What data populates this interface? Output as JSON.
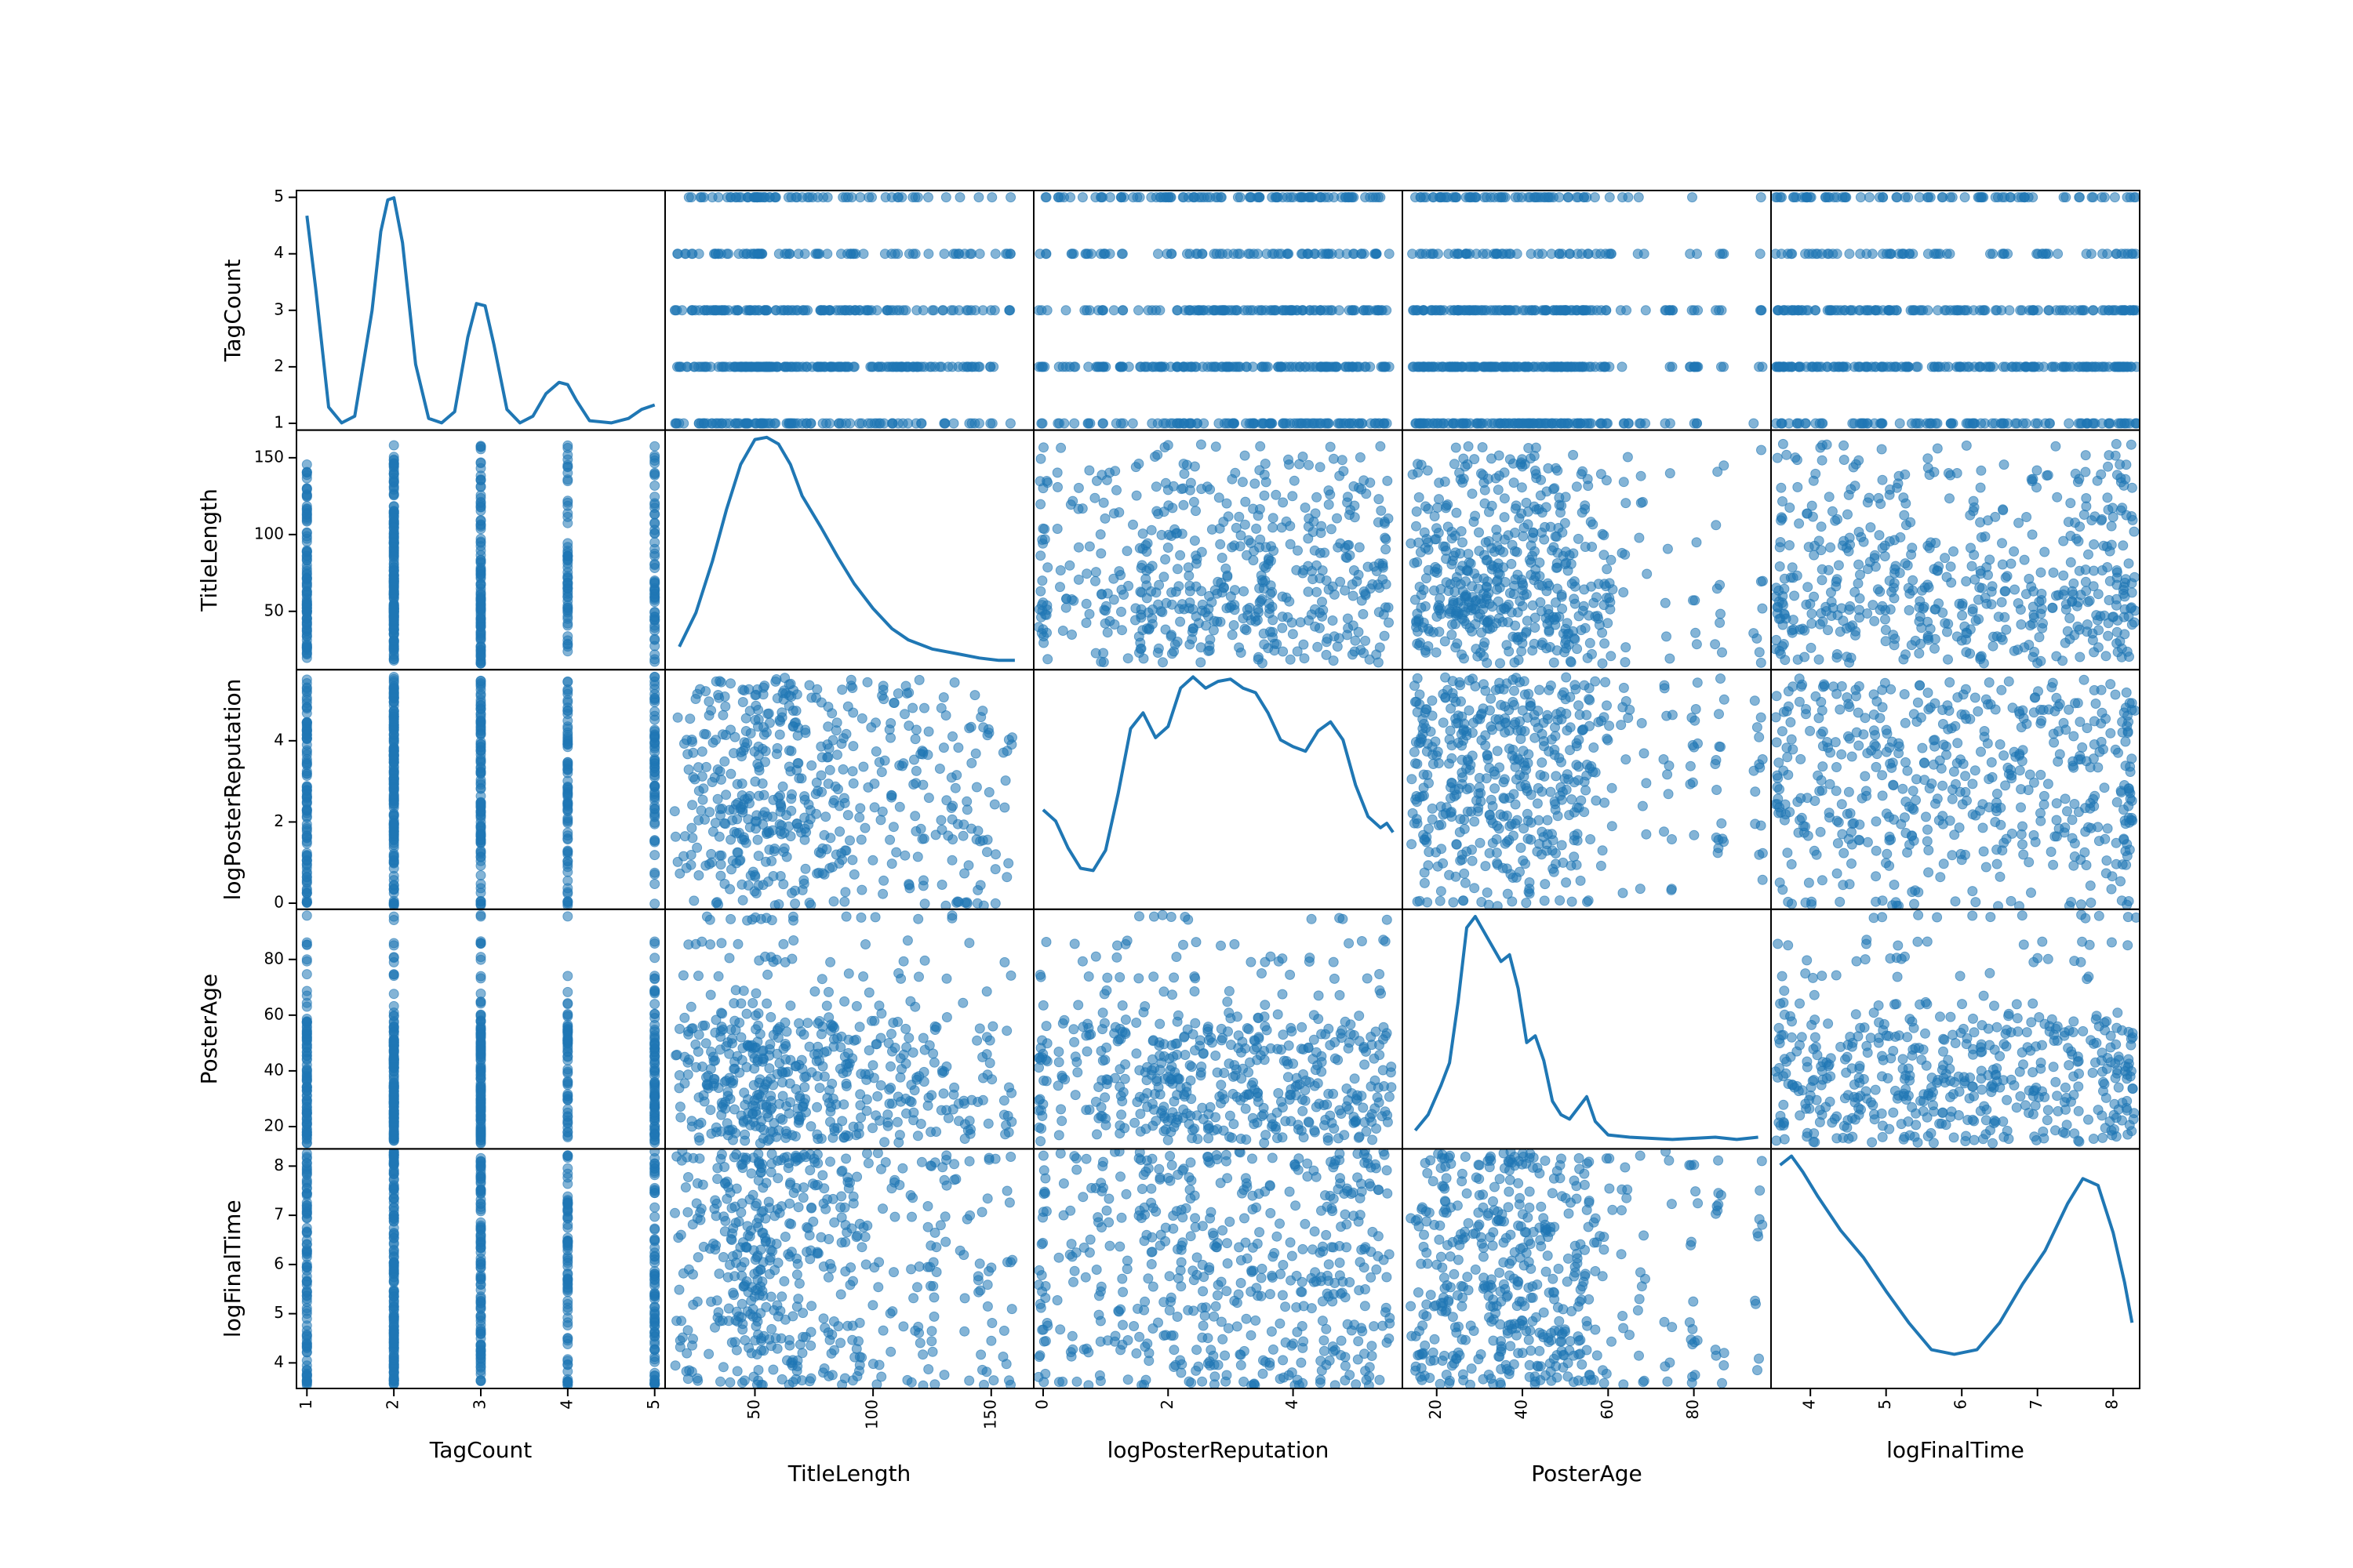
{
  "chart_data": {
    "type": "scatter",
    "variables": [
      {
        "name": "TagCount",
        "ticks": [
          1,
          2,
          3,
          4,
          5
        ]
      },
      {
        "name": "TitleLength",
        "ticks": [
          50,
          100,
          150
        ]
      },
      {
        "name": "logPosterReputation",
        "ticks": [
          0,
          2,
          4
        ]
      },
      {
        "name": "PosterAge",
        "ticks": [
          20,
          40,
          60,
          80
        ]
      },
      {
        "name": "logFinalTime",
        "ticks": [
          4,
          5,
          6,
          7,
          8
        ]
      }
    ],
    "diagonal": "kde",
    "point_color": "#1f77b4",
    "point_alpha": 0.5,
    "kde": {
      "TagCount": [
        [
          1.0,
          0.92
        ],
        [
          1.1,
          0.6
        ],
        [
          1.25,
          0.07
        ],
        [
          1.4,
          0.0
        ],
        [
          1.55,
          0.03
        ],
        [
          1.75,
          0.5
        ],
        [
          1.85,
          0.85
        ],
        [
          1.93,
          0.99
        ],
        [
          2.0,
          1.0
        ],
        [
          2.1,
          0.8
        ],
        [
          2.25,
          0.26
        ],
        [
          2.4,
          0.02
        ],
        [
          2.55,
          0.0
        ],
        [
          2.7,
          0.05
        ],
        [
          2.85,
          0.38
        ],
        [
          2.95,
          0.53
        ],
        [
          3.05,
          0.52
        ],
        [
          3.15,
          0.35
        ],
        [
          3.3,
          0.06
        ],
        [
          3.45,
          0.0
        ],
        [
          3.6,
          0.03
        ],
        [
          3.75,
          0.13
        ],
        [
          3.9,
          0.18
        ],
        [
          4.0,
          0.17
        ],
        [
          4.1,
          0.1
        ],
        [
          4.25,
          0.01
        ],
        [
          4.5,
          0.0
        ],
        [
          4.7,
          0.02
        ],
        [
          4.85,
          0.06
        ],
        [
          5.0,
          0.08
        ]
      ],
      "TitleLength": [
        [
          18,
          0.07
        ],
        [
          25,
          0.22
        ],
        [
          32,
          0.45
        ],
        [
          38,
          0.68
        ],
        [
          44,
          0.88
        ],
        [
          50,
          0.99
        ],
        [
          55,
          1.0
        ],
        [
          60,
          0.97
        ],
        [
          65,
          0.88
        ],
        [
          70,
          0.74
        ],
        [
          78,
          0.6
        ],
        [
          85,
          0.47
        ],
        [
          92,
          0.35
        ],
        [
          100,
          0.24
        ],
        [
          108,
          0.15
        ],
        [
          115,
          0.1
        ],
        [
          125,
          0.06
        ],
        [
          135,
          0.04
        ],
        [
          145,
          0.02
        ],
        [
          153,
          0.01
        ],
        [
          160,
          0.01
        ]
      ],
      "logPosterReputation": [
        [
          0.0,
          0.41
        ],
        [
          0.2,
          0.36
        ],
        [
          0.4,
          0.24
        ],
        [
          0.6,
          0.15
        ],
        [
          0.8,
          0.14
        ],
        [
          1.0,
          0.23
        ],
        [
          1.2,
          0.48
        ],
        [
          1.4,
          0.77
        ],
        [
          1.6,
          0.84
        ],
        [
          1.8,
          0.73
        ],
        [
          2.0,
          0.78
        ],
        [
          2.2,
          0.95
        ],
        [
          2.4,
          1.0
        ],
        [
          2.6,
          0.95
        ],
        [
          2.8,
          0.98
        ],
        [
          3.0,
          0.99
        ],
        [
          3.2,
          0.95
        ],
        [
          3.4,
          0.93
        ],
        [
          3.6,
          0.84
        ],
        [
          3.8,
          0.72
        ],
        [
          4.0,
          0.69
        ],
        [
          4.2,
          0.67
        ],
        [
          4.4,
          0.76
        ],
        [
          4.6,
          0.8
        ],
        [
          4.8,
          0.72
        ],
        [
          5.0,
          0.52
        ],
        [
          5.2,
          0.38
        ],
        [
          5.4,
          0.33
        ],
        [
          5.5,
          0.35
        ],
        [
          5.6,
          0.31
        ]
      ],
      "PosterAge": [
        [
          15,
          0.05
        ],
        [
          18,
          0.12
        ],
        [
          21,
          0.25
        ],
        [
          23,
          0.35
        ],
        [
          25,
          0.62
        ],
        [
          27,
          0.95
        ],
        [
          29,
          1.0
        ],
        [
          32,
          0.9
        ],
        [
          35,
          0.8
        ],
        [
          37,
          0.83
        ],
        [
          39,
          0.68
        ],
        [
          41,
          0.44
        ],
        [
          43,
          0.47
        ],
        [
          45,
          0.36
        ],
        [
          47,
          0.18
        ],
        [
          49,
          0.12
        ],
        [
          51,
          0.1
        ],
        [
          53,
          0.15
        ],
        [
          55,
          0.2
        ],
        [
          57,
          0.09
        ],
        [
          60,
          0.03
        ],
        [
          65,
          0.02
        ],
        [
          75,
          0.01
        ],
        [
          85,
          0.02
        ],
        [
          90,
          0.01
        ],
        [
          95,
          0.02
        ]
      ],
      "logFinalTime": [
        [
          3.6,
          0.96
        ],
        [
          3.75,
          1.0
        ],
        [
          3.9,
          0.93
        ],
        [
          4.1,
          0.82
        ],
        [
          4.4,
          0.67
        ],
        [
          4.7,
          0.55
        ],
        [
          5.0,
          0.4
        ],
        [
          5.3,
          0.26
        ],
        [
          5.6,
          0.14
        ],
        [
          5.9,
          0.12
        ],
        [
          6.2,
          0.14
        ],
        [
          6.5,
          0.26
        ],
        [
          6.8,
          0.43
        ],
        [
          7.1,
          0.58
        ],
        [
          7.4,
          0.79
        ],
        [
          7.6,
          0.9
        ],
        [
          7.8,
          0.87
        ],
        [
          8.0,
          0.66
        ],
        [
          8.15,
          0.44
        ],
        [
          8.25,
          0.26
        ]
      ]
    },
    "scatter_samples": {
      "TitleLength": [
        18,
        22,
        25,
        28,
        30,
        33,
        35,
        37,
        39,
        41,
        43,
        45,
        46,
        48,
        50,
        51,
        52,
        53,
        55,
        56,
        58,
        60,
        62,
        64,
        66,
        68,
        70,
        72,
        75,
        78,
        80,
        82,
        85,
        88,
        90,
        93,
        96,
        100,
        104,
        108,
        112,
        116,
        120,
        125,
        130,
        135,
        140,
        145,
        150,
        157
      ],
      "logPosterReputation": [
        0,
        0,
        0.3,
        0.5,
        0.7,
        0.9,
        1.0,
        1.2,
        1.3,
        1.5,
        1.6,
        1.7,
        1.8,
        1.9,
        2.0,
        2.1,
        2.2,
        2.3,
        2.4,
        2.5,
        2.6,
        2.7,
        2.8,
        2.9,
        3.0,
        3.1,
        3.2,
        3.3,
        3.4,
        3.5,
        3.6,
        3.7,
        3.8,
        3.9,
        4.0,
        4.1,
        4.2,
        4.3,
        4.4,
        4.5,
        4.6,
        4.7,
        4.8,
        4.9,
        5.0,
        5.1,
        5.2,
        5.3,
        5.4,
        5.5
      ],
      "PosterAge": [
        15,
        16,
        17,
        18,
        19,
        20,
        21,
        22,
        23,
        24,
        25,
        26,
        27,
        28,
        29,
        30,
        31,
        32,
        33,
        34,
        35,
        36,
        37,
        38,
        39,
        40,
        41,
        42,
        43,
        44,
        45,
        46,
        47,
        48,
        49,
        50,
        51,
        52,
        53,
        54,
        55,
        56,
        58,
        60,
        64,
        68,
        74,
        80,
        86,
        95
      ],
      "logFinalTime": [
        3.6,
        3.6,
        3.7,
        3.8,
        3.9,
        4.0,
        4.1,
        4.2,
        4.3,
        4.4,
        4.5,
        4.6,
        4.7,
        4.8,
        4.9,
        5.0,
        5.1,
        5.2,
        5.3,
        5.4,
        5.5,
        5.6,
        5.7,
        5.8,
        5.9,
        6.0,
        6.1,
        6.2,
        6.3,
        6.4,
        6.5,
        6.6,
        6.7,
        6.8,
        6.9,
        7.0,
        7.1,
        7.2,
        7.3,
        7.4,
        7.5,
        7.6,
        7.7,
        7.8,
        7.9,
        8.0,
        8.1,
        8.15,
        8.2,
        8.25
      ],
      "TagCount": [
        1,
        1,
        1,
        1,
        1,
        1,
        1,
        1,
        1,
        1,
        2,
        2,
        2,
        2,
        2,
        2,
        2,
        2,
        2,
        2,
        2,
        2,
        2,
        2,
        2,
        3,
        3,
        3,
        3,
        3,
        3,
        3,
        3,
        3,
        3,
        3,
        4,
        4,
        4,
        4,
        4,
        4,
        4,
        5,
        5,
        5,
        5,
        5,
        5,
        5
      ]
    }
  }
}
